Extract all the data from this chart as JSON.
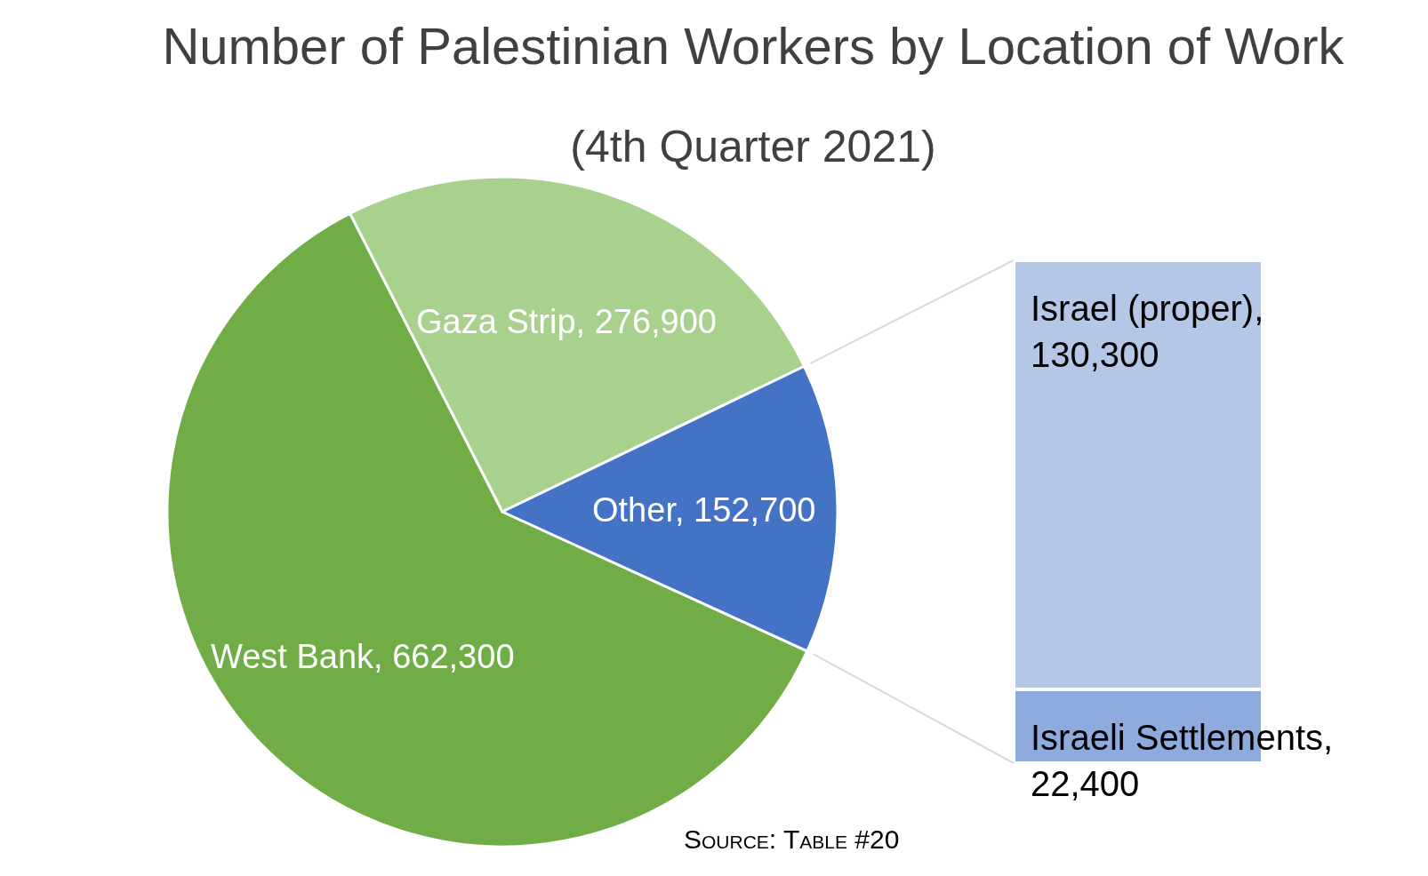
{
  "chart_data": [
    {
      "type": "pie",
      "title": "Number of Palestinian Workers by Location of Work",
      "subtitle": "(4th Quarter 2021)",
      "categories": [
        "West Bank",
        "Gaza Strip",
        "Other"
      ],
      "values": [
        662300,
        276900,
        152700
      ],
      "value_labels": [
        "662,300",
        "276,900",
        "152,700"
      ],
      "colors": [
        "#70ad47",
        "#a9d18e",
        "#4472c4"
      ],
      "annotations": [
        "Source: Table #20"
      ]
    },
    {
      "type": "bar",
      "stacked": true,
      "categories": [
        null
      ],
      "series": [
        {
          "name": "Israeli Settlements,",
          "color": "#8faadc",
          "values": [
            22400
          ],
          "value_labels": [
            "22,400"
          ]
        },
        {
          "name": "Israel (proper),",
          "color": "#b4c7e7",
          "values": [
            130300
          ],
          "value_labels": [
            "130,300"
          ]
        }
      ],
      "tick_labels": false
    }
  ]
}
